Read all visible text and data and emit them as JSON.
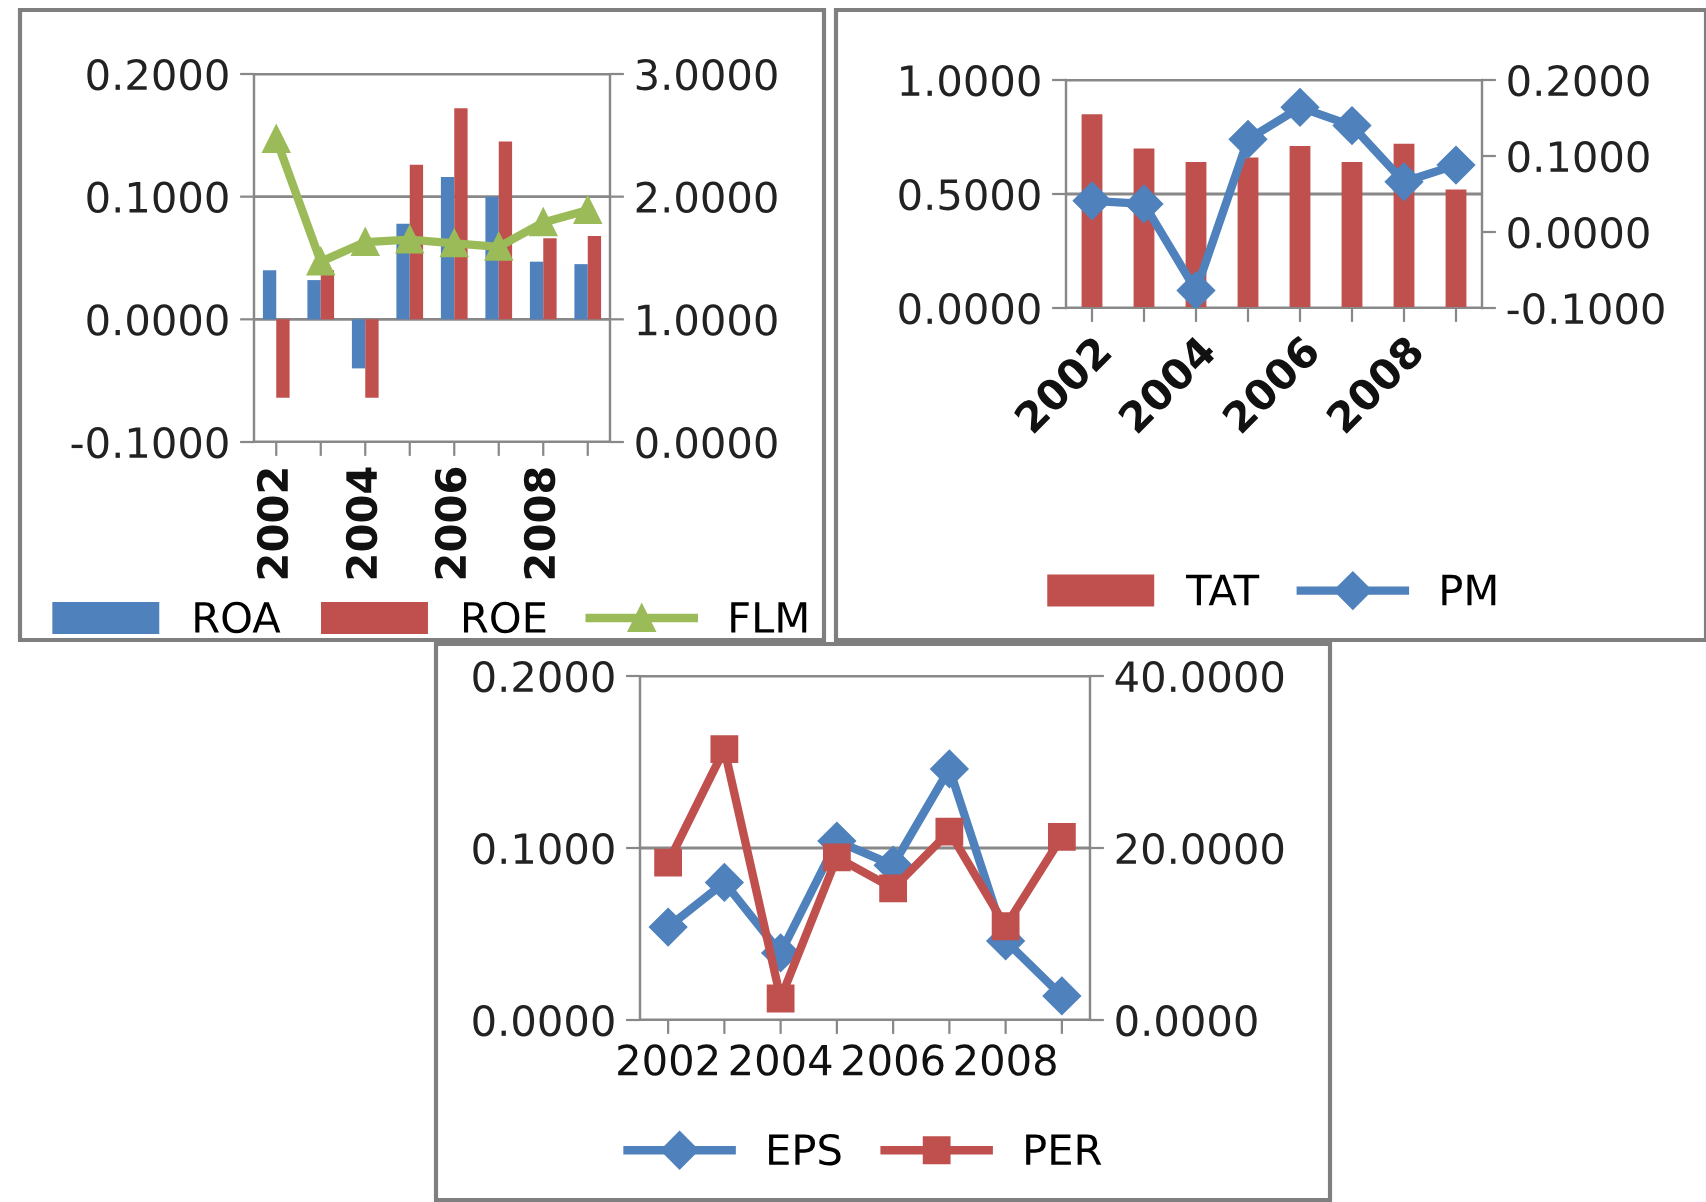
{
  "chart_data": [
    {
      "type": "bar",
      "categories": [
        "2002",
        null,
        "2004",
        null,
        "2006",
        null,
        "2008",
        null
      ],
      "series": [
        {
          "name": "ROA",
          "color": "#4f81bd",
          "values": [
            0.04,
            0.032,
            -0.04,
            0.078,
            0.116,
            0.1,
            0.047,
            0.045
          ]
        },
        {
          "name": "ROE",
          "color": "#c0504d",
          "values": [
            -0.064,
            0.04,
            -0.064,
            0.126,
            0.172,
            0.145,
            0.066,
            0.068
          ]
        },
        {
          "name": "FLM",
          "type": "line",
          "axis": "y2",
          "marker": "triangle",
          "color": "#9bbb59",
          "values": [
            2.47,
            1.47,
            1.63,
            1.65,
            1.62,
            1.59,
            1.79,
            1.89
          ]
        }
      ],
      "ylim": [
        -0.1,
        0.2
      ],
      "yticks": [
        {
          "value": -0.1,
          "label": "-0.1000"
        },
        {
          "value": 0,
          "label": "0.0000"
        },
        {
          "value": 0.1,
          "label": "0.1000"
        },
        {
          "value": 0.2,
          "label": "0.2000"
        }
      ],
      "y2lim": [
        0,
        3
      ],
      "y2ticks": [
        {
          "value": 0,
          "label": "0.0000"
        },
        {
          "value": 1,
          "label": "1.0000"
        },
        {
          "value": 2,
          "label": "2.0000"
        },
        {
          "value": 3,
          "label": "3.0000"
        }
      ],
      "grid": "y",
      "legend": "bottom"
    },
    {
      "type": "bar",
      "categories": [
        "2002",
        null,
        "2004",
        null,
        "2006",
        null,
        "2008",
        null
      ],
      "series": [
        {
          "name": "TAT",
          "color": "#c0504d",
          "values": [
            0.85,
            0.7,
            0.64,
            0.66,
            0.71,
            0.64,
            0.72,
            0.52
          ]
        },
        {
          "name": "PM",
          "type": "line",
          "axis": "y2",
          "marker": "diamond",
          "color": "#4f81bd",
          "values": [
            0.041,
            0.037,
            -0.077,
            0.122,
            0.164,
            0.14,
            0.066,
            0.088
          ]
        }
      ],
      "ylim": [
        0,
        1
      ],
      "yticks": [
        {
          "value": 0,
          "label": "0.0000"
        },
        {
          "value": 0.5,
          "label": "0.5000"
        },
        {
          "value": 1,
          "label": "1.0000"
        }
      ],
      "y2lim": [
        -0.1,
        0.2
      ],
      "y2ticks": [
        {
          "value": -0.1,
          "label": "-0.1000"
        },
        {
          "value": 0,
          "label": "0.0000"
        },
        {
          "value": 0.1,
          "label": "0.1000"
        },
        {
          "value": 0.2,
          "label": "0.2000"
        }
      ],
      "grid": "y",
      "legend": "bottom"
    },
    {
      "type": "line",
      "categories": [
        "2002",
        null,
        "2004",
        null,
        "2006",
        null,
        "2008",
        null
      ],
      "series": [
        {
          "name": "EPS",
          "marker": "diamond",
          "color": "#4f81bd",
          "values": [
            0.054,
            0.08,
            0.039,
            0.104,
            0.09,
            0.146,
            0.046,
            0.014
          ]
        },
        {
          "name": "PER",
          "axis": "y2",
          "marker": "square",
          "color": "#c0504d",
          "values": [
            18.3,
            31.5,
            2.5,
            18.9,
            15.3,
            21.9,
            10.9,
            21.3
          ]
        }
      ],
      "ylim": [
        0,
        0.2
      ],
      "yticks": [
        {
          "value": 0,
          "label": "0.0000"
        },
        {
          "value": 0.1,
          "label": "0.1000"
        },
        {
          "value": 0.2,
          "label": "0.2000"
        }
      ],
      "y2lim": [
        0,
        40
      ],
      "y2ticks": [
        {
          "value": 0,
          "label": "0.0000"
        },
        {
          "value": 20,
          "label": "20.0000"
        },
        {
          "value": 40,
          "label": "40.0000"
        }
      ],
      "grid": "y",
      "legend": "bottom"
    }
  ]
}
